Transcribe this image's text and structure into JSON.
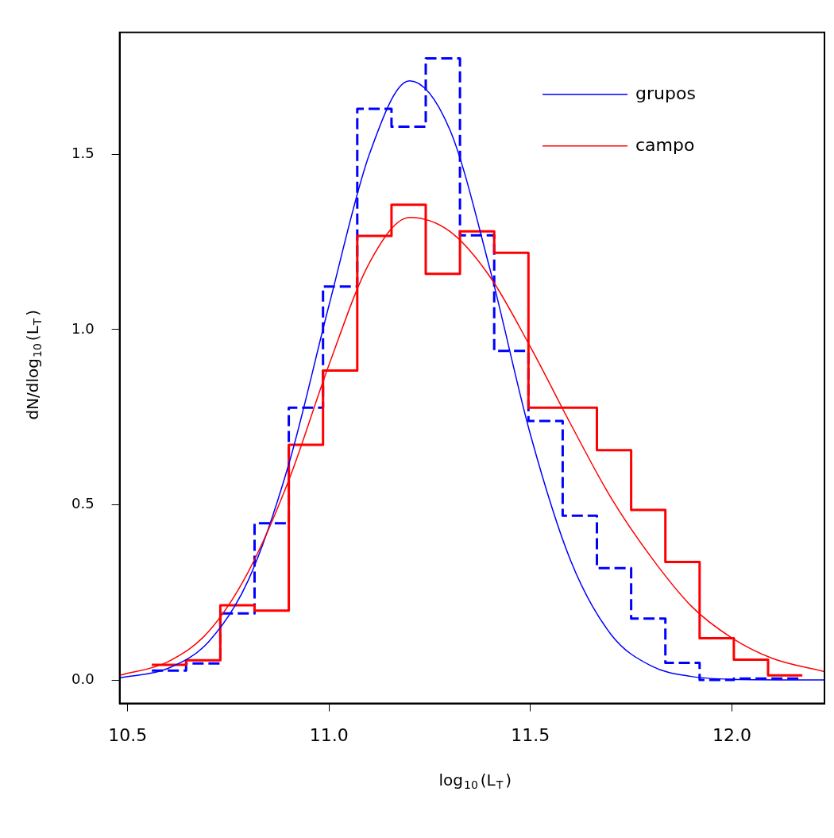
{
  "chart_data": {
    "type": "histogram",
    "xlabel": "log$_{10}$(L$_{T}$)",
    "ylabel": "dN/dlog$_{10}$(L$_{T}$)",
    "legend": "top right",
    "bins": [
      10.56,
      10.645,
      10.73,
      10.815,
      10.9,
      10.985,
      11.07,
      11.155,
      11.24,
      11.325,
      11.41,
      11.495,
      11.58,
      11.665,
      11.75,
      11.835,
      11.92,
      12.005,
      12.09,
      12.175
    ],
    "xlim": [
      10.48,
      12.23
    ],
    "ylim": [
      -0.067,
      1.848
    ],
    "xticks": [
      10.5,
      {
        "value": 11,
        "label": "11.0"
      },
      11.5,
      {
        "value": 12,
        "label": "12.0"
      }
    ],
    "yticks": [
      {
        "value": 0,
        "label": "0.0"
      },
      0.5,
      {
        "value": 1,
        "label": "1.0"
      },
      1.5
    ],
    "series": [
      {
        "color": "#0000ff",
        "line_style": "dashed",
        "values": [
          0.027,
          0.047,
          0.19,
          0.447,
          0.777,
          1.123,
          1.63,
          1.579,
          1.774,
          1.269,
          0.939,
          0.739,
          0.469,
          0.319,
          0.175,
          0.049,
          0,
          0.004,
          0.004
        ]
      },
      {
        "color": "#ff0000",
        "line_style": "solid",
        "values": [
          0.043,
          0.056,
          0.213,
          0.198,
          0.671,
          0.883,
          1.267,
          1.356,
          1.159,
          1.28,
          1.219,
          0.777,
          0.777,
          0.656,
          0.485,
          0.337,
          0.119,
          0.058,
          0.013
        ]
      },
      {
        "type": "line",
        "name": "grupos",
        "color": "#0000ff",
        "x": [
          10.48,
          10.6,
          10.7,
          10.8,
          10.9,
          11.0,
          11.1,
          11.2,
          11.3,
          11.4,
          11.5,
          11.6,
          11.7,
          11.8,
          11.9,
          12.0,
          12.23
        ],
        "values": [
          0.006,
          0.033,
          0.108,
          0.286,
          0.616,
          1.07,
          1.5,
          1.71,
          1.57,
          1.17,
          0.7,
          0.34,
          0.13,
          0.04,
          0.01,
          0.002,
          0
        ]
      },
      {
        "type": "line",
        "name": "campo",
        "color": "#ff0000",
        "x": [
          10.48,
          10.6,
          10.7,
          10.8,
          10.9,
          11.0,
          11.1,
          11.2,
          11.3,
          11.4,
          11.5,
          11.6,
          11.7,
          11.8,
          11.9,
          12.0,
          12.1,
          12.23
        ],
        "values": [
          0.013,
          0.052,
          0.137,
          0.31,
          0.57,
          0.9,
          1.19,
          1.32,
          1.28,
          1.15,
          0.95,
          0.73,
          0.52,
          0.35,
          0.21,
          0.12,
          0.062,
          0.024
        ]
      }
    ]
  }
}
